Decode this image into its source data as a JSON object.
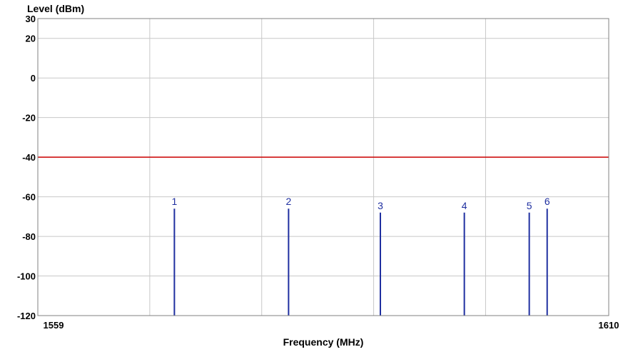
{
  "chart_data": {
    "type": "bar",
    "title": "",
    "xlabel": "Frequency (MHz)",
    "ylabel": "Level (dBm)",
    "xlim": [
      1559,
      1610
    ],
    "ylim": [
      -120,
      30
    ],
    "x_tick_labels": [
      "1559",
      "1610"
    ],
    "y_tick_labels": [
      "30",
      "20",
      "0",
      "-20",
      "-40",
      "-60",
      "-80",
      "-100",
      "-120"
    ],
    "y_ticks": [
      30,
      20,
      0,
      -20,
      -40,
      -60,
      -80,
      -100,
      -120
    ],
    "x_gridlines": [
      1569,
      1579,
      1589,
      1599
    ],
    "grid": true,
    "threshold": {
      "value": -40,
      "color": "#cc0000"
    },
    "series": [
      {
        "type": "stem",
        "color": "#1f2fa0",
        "points": [
          {
            "label": "1",
            "x": 1571.2,
            "y": -66
          },
          {
            "label": "2",
            "x": 1581.4,
            "y": -66
          },
          {
            "label": "3",
            "x": 1589.6,
            "y": -68
          },
          {
            "label": "4",
            "x": 1597.1,
            "y": -68
          },
          {
            "label": "5",
            "x": 1602.9,
            "y": -68
          },
          {
            "label": "6",
            "x": 1604.5,
            "y": -66
          }
        ]
      }
    ],
    "colors": {
      "grid": "#c8c8c8",
      "frame": "#808080"
    }
  }
}
